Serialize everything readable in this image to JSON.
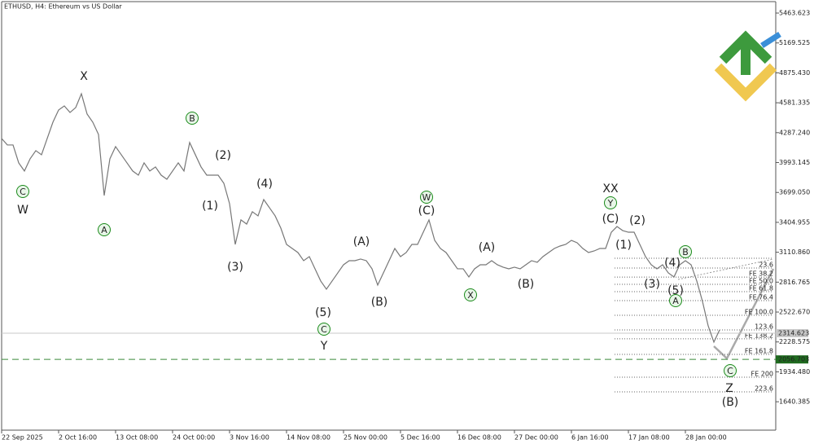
{
  "chart_data": {
    "type": "line",
    "title": "ETHUSD, H4:  Ethereum vs US Dollar",
    "categories": [
      "22 Sep 2025",
      null,
      null,
      null,
      null,
      null,
      null,
      null,
      null,
      null,
      "2 Oct 16:00",
      null,
      null,
      null,
      null,
      null,
      null,
      null,
      null,
      null,
      "13 Oct 08:00",
      null,
      null,
      null,
      null,
      null,
      null,
      null,
      null,
      null,
      "24 Oct 00:00",
      null,
      null,
      null,
      null,
      null,
      null,
      null,
      null,
      null,
      "3 Nov 16:00",
      null,
      null,
      null,
      null,
      null,
      null,
      null,
      null,
      null,
      "14 Nov 08:00",
      null,
      null,
      null,
      null,
      null,
      null,
      null,
      null,
      null,
      "25 Nov 00:00",
      null,
      null,
      null,
      null,
      null,
      null,
      null,
      null,
      null,
      "5 Dec 16:00",
      null,
      null,
      null,
      null,
      null,
      null,
      null,
      null,
      null,
      "16 Dec 08:00",
      null,
      null,
      null,
      null,
      null,
      null,
      null,
      null,
      null,
      "27 Dec 00:00",
      null,
      null,
      null,
      null,
      null,
      null,
      null,
      null,
      null,
      "6 Jan 16:00",
      null,
      null,
      null,
      null,
      null,
      null,
      null,
      null,
      null,
      "17 Jan 08:00",
      null,
      null,
      null,
      null,
      null,
      null,
      null,
      null,
      null,
      "28 Jan 00:00",
      null,
      null,
      null,
      null,
      null,
      null
    ],
    "series": [
      {
        "name": "ETHUSD",
        "color": "#777777",
        "values": [
          4230,
          4166,
          4166,
          3990,
          3910,
          4030,
          4110,
          4070,
          4230,
          4390,
          4510,
          4550,
          4486,
          4534,
          4670,
          4470,
          4390,
          4270,
          3669,
          4030,
          4150,
          4070,
          3990,
          3910,
          3869,
          3990,
          3910,
          3950,
          3869,
          3829,
          3910,
          3990,
          3910,
          4190,
          4070,
          3950,
          3869,
          3869,
          3869,
          3789,
          3589,
          3188,
          3429,
          3388,
          3509,
          3469,
          3629,
          3549,
          3469,
          3348,
          3188,
          3148,
          3108,
          3028,
          3068,
          2948,
          2828,
          2748,
          2828,
          2908,
          2988,
          3028,
          3028,
          3044,
          3028,
          2948,
          2788,
          2908,
          3028,
          3148,
          3068,
          3108,
          3188,
          3188,
          3308,
          3429,
          3228,
          3148,
          3108,
          3028,
          2948,
          2948,
          2868,
          2948,
          2988,
          2988,
          3028,
          2988,
          2964,
          2948,
          2964,
          2948,
          2988,
          3028,
          3012,
          3068,
          3108,
          3148,
          3172,
          3188,
          3228,
          3204,
          3148,
          3108,
          3124,
          3148,
          3148,
          3308,
          3364,
          3324,
          3308,
          3308,
          3188,
          3068,
          2988,
          2948,
          2988,
          2908,
          2868,
          2988,
          3028,
          2988,
          2828,
          2627,
          2387,
          2227,
          2347
        ]
      }
    ],
    "ylim": [
      1361,
      5576
    ],
    "yticks": [
      5463.623,
      5169.525,
      {
        "value": 4875.43,
        "label": "4875.430"
      },
      4581.335,
      {
        "value": 4287.24,
        "label": "4287.240"
      },
      3993.145,
      {
        "value": 3699.05,
        "label": "3699.050"
      },
      3404.955,
      {
        "value": 3110.86,
        "label": "3110.860"
      },
      2816.765,
      {
        "value": 2522.67,
        "label": "2522.670"
      },
      2228.575,
      {
        "value": 1934.48,
        "label": "1934.480"
      },
      1640.385
    ],
    "current_price": 2314.623,
    "target_price": 2056.703,
    "fib_levels": [
      {
        "value": 3052
      },
      {
        "value": 2956,
        "label": "23.6"
      },
      {
        "value": 2867,
        "label": "FE 38.2"
      },
      {
        "value": 2795,
        "label": "FE 50.0"
      },
      {
        "value": 2723,
        "label": "FE 61.8"
      },
      {
        "value": 2635,
        "label": "FE 76.4"
      },
      {
        "value": 2491,
        "label": "FE 100.0"
      },
      {
        "value": 2347,
        "label": "123.6"
      },
      {
        "value": 2259,
        "label": "FE 138.2"
      },
      {
        "value": 2106,
        "label": "FE 161.8"
      },
      {
        "value": 1882,
        "label": "FE 200"
      },
      {
        "value": 1738,
        "label": "223.6"
      }
    ],
    "annotations": [
      {
        "text": "X",
        "color": "#8b0000"
      },
      {
        "text": "W",
        "color": "#8b0000"
      },
      {
        "text": "Y",
        "color": "#8b0000"
      },
      {
        "text": "XX",
        "color": "#8b0000"
      },
      {
        "text": "Z",
        "color": "#8b0000"
      },
      {
        "text": "C",
        "color": "#1a8a1a",
        "circled": true
      },
      {
        "text": "A",
        "color": "#1a8a1a",
        "circled": true
      },
      {
        "text": "B",
        "color": "#1a8a1a",
        "circled": true
      },
      {
        "text": "C",
        "color": "#1a8a1a",
        "circled": true
      },
      {
        "text": "W",
        "color": "#1a8a1a",
        "circled": true
      },
      {
        "text": "X",
        "color": "#1a8a1a",
        "circled": true
      },
      {
        "text": "Y",
        "color": "#1a8a1a",
        "circled": true
      },
      {
        "text": "B",
        "color": "#1a8a1a",
        "circled": true
      },
      {
        "text": "A",
        "color": "#1a8a1a",
        "circled": true
      },
      {
        "text": "C",
        "color": "#1a8a1a",
        "circled": true
      },
      {
        "text": "(2)",
        "color": "#1a1a7a"
      },
      {
        "text": "(1)",
        "color": "#1a1a7a"
      },
      {
        "text": "(4)",
        "color": "#1a1a7a"
      },
      {
        "text": "(3)",
        "color": "#1a1a7a"
      },
      {
        "text": "(5)",
        "color": "#1a1a7a"
      },
      {
        "text": "(A)",
        "color": "#1a1a7a"
      },
      {
        "text": "(B)",
        "color": "#1a1a7a"
      },
      {
        "text": "(C)",
        "color": "#1a1a7a"
      },
      {
        "text": "(A)",
        "color": "#1a1a7a"
      },
      {
        "text": "(B)",
        "color": "#1a1a7a"
      },
      {
        "text": "(C)",
        "color": "#1a1a7a"
      },
      {
        "text": "(2)",
        "color": "#1a1a7a"
      },
      {
        "text": "(1)",
        "color": "#1a1a7a"
      },
      {
        "text": "(4)",
        "color": "#1a1a7a"
      },
      {
        "text": "(3)",
        "color": "#1a1a7a"
      },
      {
        "text": "(5)",
        "color": "#1a1a7a"
      },
      {
        "text": "(B)",
        "color": "#1a1a7a"
      }
    ]
  }
}
